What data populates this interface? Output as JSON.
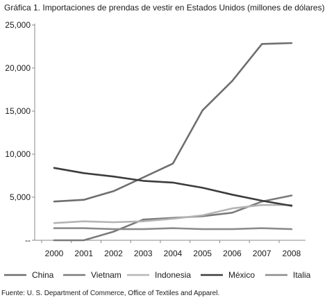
{
  "chart_data": {
    "type": "line",
    "title": "Gráfica 1. Importaciones de prendas de vestir en Estados Unidos (millones de dólares)",
    "source": "Fuente: U. S. Department of Commerce, Office of Textiles and Apparel.",
    "xlabel": "",
    "ylabel": "",
    "x": [
      "2000",
      "2001",
      "2002",
      "2003",
      "2004",
      "2005",
      "2006",
      "2007",
      "2008"
    ],
    "ylim": [
      0,
      25000
    ],
    "yticks": [
      0,
      5000,
      10000,
      15000,
      20000,
      25000
    ],
    "ytick_labels": [
      "--",
      "5,000",
      "10,000",
      "15,000",
      "20,000",
      "25,000"
    ],
    "grid": false,
    "legend_position": "bottom",
    "series": [
      {
        "name": "China",
        "color": "#6e6e6e",
        "values": [
          4500,
          4700,
          5700,
          7300,
          8900,
          15100,
          18500,
          22800,
          22900
        ]
      },
      {
        "name": "Vietnam",
        "color": "#7a7a7a",
        "values": [
          0,
          0,
          1000,
          2400,
          2600,
          2800,
          3200,
          4500,
          5200
        ]
      },
      {
        "name": "Indonesia",
        "color": "#b4b4b4",
        "values": [
          2000,
          2200,
          2100,
          2200,
          2500,
          2900,
          3700,
          4100,
          4100
        ]
      },
      {
        "name": "México",
        "color": "#3c3c3c",
        "values": [
          8400,
          7800,
          7400,
          6900,
          6700,
          6100,
          5300,
          4600,
          4000
        ]
      },
      {
        "name": "Italia",
        "color": "#8c8c8c",
        "values": [
          1400,
          1400,
          1300,
          1300,
          1400,
          1300,
          1300,
          1400,
          1300
        ]
      }
    ]
  }
}
